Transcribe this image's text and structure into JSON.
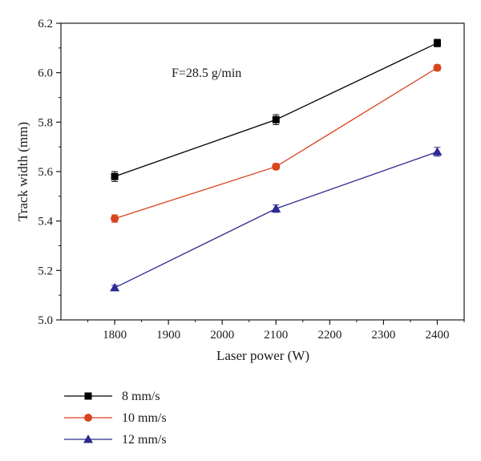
{
  "chart_data": {
    "type": "line",
    "title": "",
    "xlabel": "Laser power (W)",
    "ylabel": "Track width (mm)",
    "xlim": [
      1700,
      2450
    ],
    "ylim": [
      5.0,
      6.2
    ],
    "xticks": [
      "1800",
      "1900",
      "2000",
      "2100",
      "2200",
      "2300",
      "2400"
    ],
    "yticks": [
      "5.0",
      "5.2",
      "5.4",
      "5.6",
      "5.8",
      "6.0",
      "6.2"
    ],
    "annotation": "F=28.5 g/min",
    "legend_position": "bottom-left, below plot",
    "x": [
      1800,
      2100,
      2400
    ],
    "series": [
      {
        "name": "8 mm/s",
        "values": [
          5.58,
          5.81,
          6.12
        ],
        "errors": [
          0.02,
          0.02,
          0.015
        ],
        "color": "#000000",
        "marker": "square"
      },
      {
        "name": "10 mm/s",
        "values": [
          5.41,
          5.62,
          6.02
        ],
        "errors": [
          0.015,
          0.012,
          0.012
        ],
        "color": "#d9441c",
        "marker": "circle"
      },
      {
        "name": "12 mm/s",
        "values": [
          5.13,
          5.45,
          5.68
        ],
        "errors": [
          0.01,
          0.015,
          0.018
        ],
        "color": "#2f2a8f",
        "marker": "triangle"
      }
    ]
  }
}
